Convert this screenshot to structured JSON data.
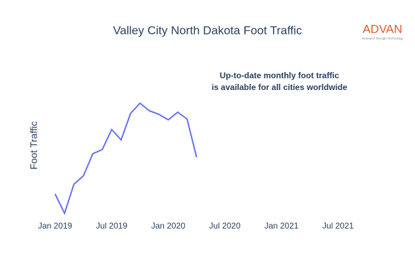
{
  "chart_data": {
    "type": "line",
    "title": "Valley City North Dakota Foot Traffic",
    "y_label": "Foot Traffic",
    "annotation": [
      "Up-to-date monthly foot traffic",
      "is available for all cities worldwide"
    ],
    "logo": {
      "name": "ADVAN",
      "tagline": "Research through Technology"
    },
    "x": [
      "2019-01",
      "2019-02",
      "2019-03",
      "2019-04",
      "2019-05",
      "2019-06",
      "2019-07",
      "2019-08",
      "2019-09",
      "2019-10",
      "2019-11",
      "2019-12",
      "2020-01",
      "2020-02",
      "2020-03",
      "2020-04"
    ],
    "values": [
      35,
      7,
      49,
      61,
      93,
      99,
      128,
      113,
      151,
      166,
      155,
      150,
      142,
      153,
      143,
      88
    ],
    "color": "#636efa",
    "xlim": [
      "2018-12",
      "2021-09"
    ],
    "xticks": [
      {
        "value": "2019-01",
        "label": "Jan 2019"
      },
      {
        "value": "2019-07",
        "label": "Jul 2019"
      },
      {
        "value": "2020-01",
        "label": "Jan 2020"
      },
      {
        "value": "2020-07",
        "label": "Jul 2020"
      },
      {
        "value": "2021-01",
        "label": "Jan 2021"
      },
      {
        "value": "2021-07",
        "label": "Jul 2021"
      }
    ],
    "ylim": [
      0,
      215
    ]
  }
}
